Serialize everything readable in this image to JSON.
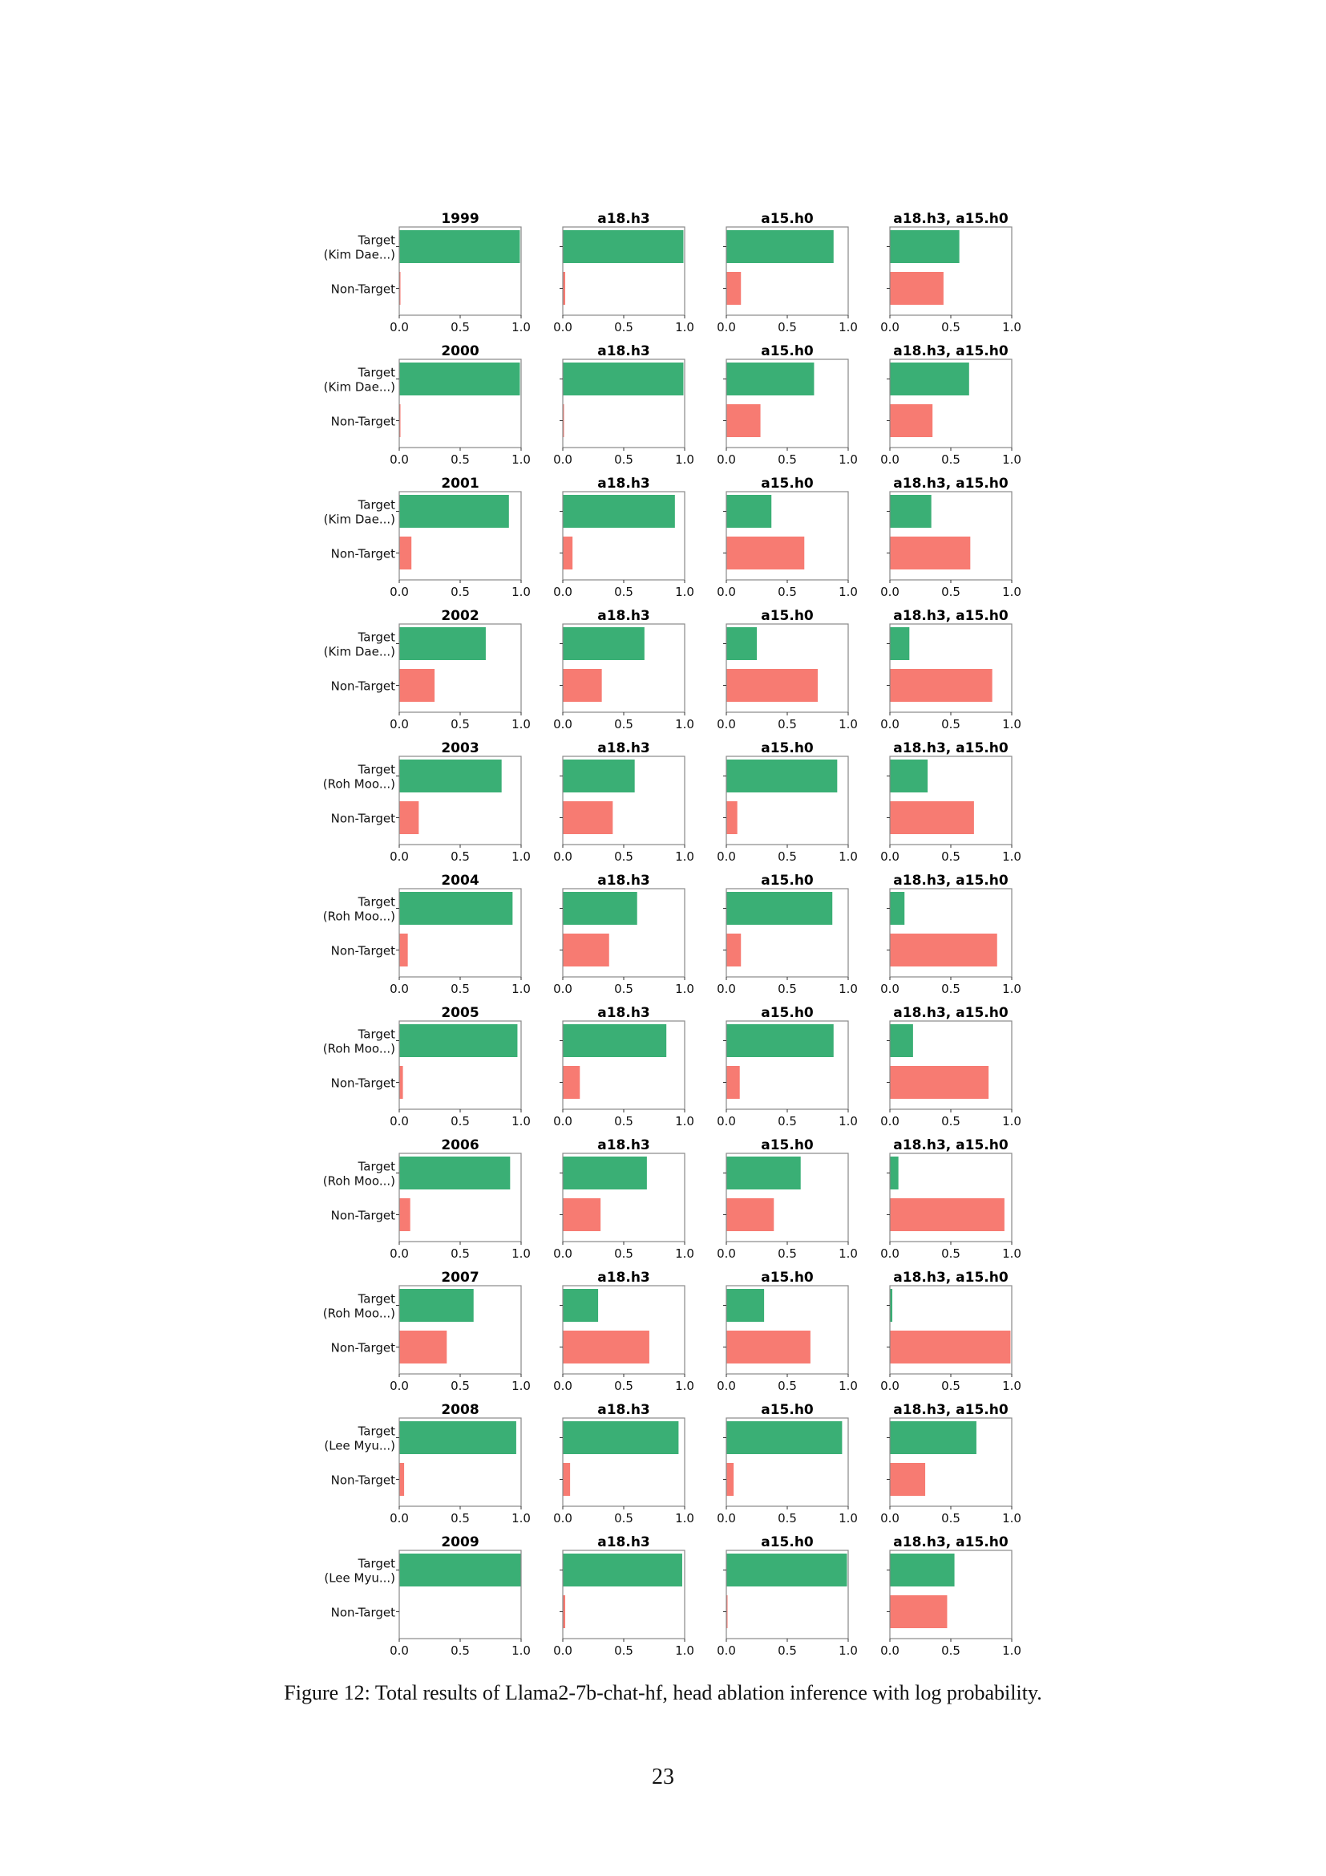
{
  "colors": {
    "target": "#3aaf75",
    "non_target": "#f77b72",
    "frame": "#888888"
  },
  "panel_titles": [
    "a18.h3",
    "a15.h0",
    "a18.h3, a15.h0"
  ],
  "y_labels": {
    "non_target": "Non-Target"
  },
  "chart_data": {
    "type": "bar",
    "orientation": "horizontal",
    "xlim": [
      0,
      1
    ],
    "xticks": [
      "0.0",
      "0.5",
      "1.0"
    ],
    "categories": [
      "Target",
      "Non-Target"
    ],
    "rows": [
      {
        "year": "1999",
        "target_label": "Target\n(Kim Dae...)",
        "target": [
          0.99,
          0.99,
          0.88,
          0.57
        ],
        "non_target": [
          0.01,
          0.02,
          0.12,
          0.44
        ]
      },
      {
        "year": "2000",
        "target_label": "Target\n(Kim Dae...)",
        "target": [
          0.99,
          0.99,
          0.72,
          0.65
        ],
        "non_target": [
          0.01,
          0.01,
          0.28,
          0.35
        ]
      },
      {
        "year": "2001",
        "target_label": "Target\n(Kim Dae...)",
        "target": [
          0.9,
          0.92,
          0.37,
          0.34
        ],
        "non_target": [
          0.1,
          0.08,
          0.64,
          0.66
        ]
      },
      {
        "year": "2002",
        "target_label": "Target\n(Kim Dae...)",
        "target": [
          0.71,
          0.67,
          0.25,
          0.16
        ],
        "non_target": [
          0.29,
          0.32,
          0.75,
          0.84
        ]
      },
      {
        "year": "2003",
        "target_label": "Target\n(Roh Moo...)",
        "target": [
          0.84,
          0.59,
          0.91,
          0.31
        ],
        "non_target": [
          0.16,
          0.41,
          0.09,
          0.69
        ]
      },
      {
        "year": "2004",
        "target_label": "Target\n(Roh Moo...)",
        "target": [
          0.93,
          0.61,
          0.87,
          0.12
        ],
        "non_target": [
          0.07,
          0.38,
          0.12,
          0.88
        ]
      },
      {
        "year": "2005",
        "target_label": "Target\n(Roh Moo...)",
        "target": [
          0.97,
          0.85,
          0.88,
          0.19
        ],
        "non_target": [
          0.03,
          0.14,
          0.11,
          0.81
        ]
      },
      {
        "year": "2006",
        "target_label": "Target\n(Roh Moo...)",
        "target": [
          0.91,
          0.69,
          0.61,
          0.07
        ],
        "non_target": [
          0.09,
          0.31,
          0.39,
          0.94
        ]
      },
      {
        "year": "2007",
        "target_label": "Target\n(Roh Moo...)",
        "target": [
          0.61,
          0.29,
          0.31,
          0.02
        ],
        "non_target": [
          0.39,
          0.71,
          0.69,
          0.99
        ]
      },
      {
        "year": "2008",
        "target_label": "Target\n(Lee Myu...)",
        "target": [
          0.96,
          0.95,
          0.95,
          0.71
        ],
        "non_target": [
          0.04,
          0.06,
          0.06,
          0.29
        ]
      },
      {
        "year": "2009",
        "target_label": "Target\n(Lee Myu...)",
        "target": [
          1.0,
          0.98,
          0.99,
          0.53
        ],
        "non_target": [
          0.0,
          0.02,
          0.01,
          0.47
        ]
      }
    ]
  },
  "caption": "Figure 12: Total results of Llama2-7b-chat-hf, head ablation inference with log probability.",
  "page_number": "23"
}
